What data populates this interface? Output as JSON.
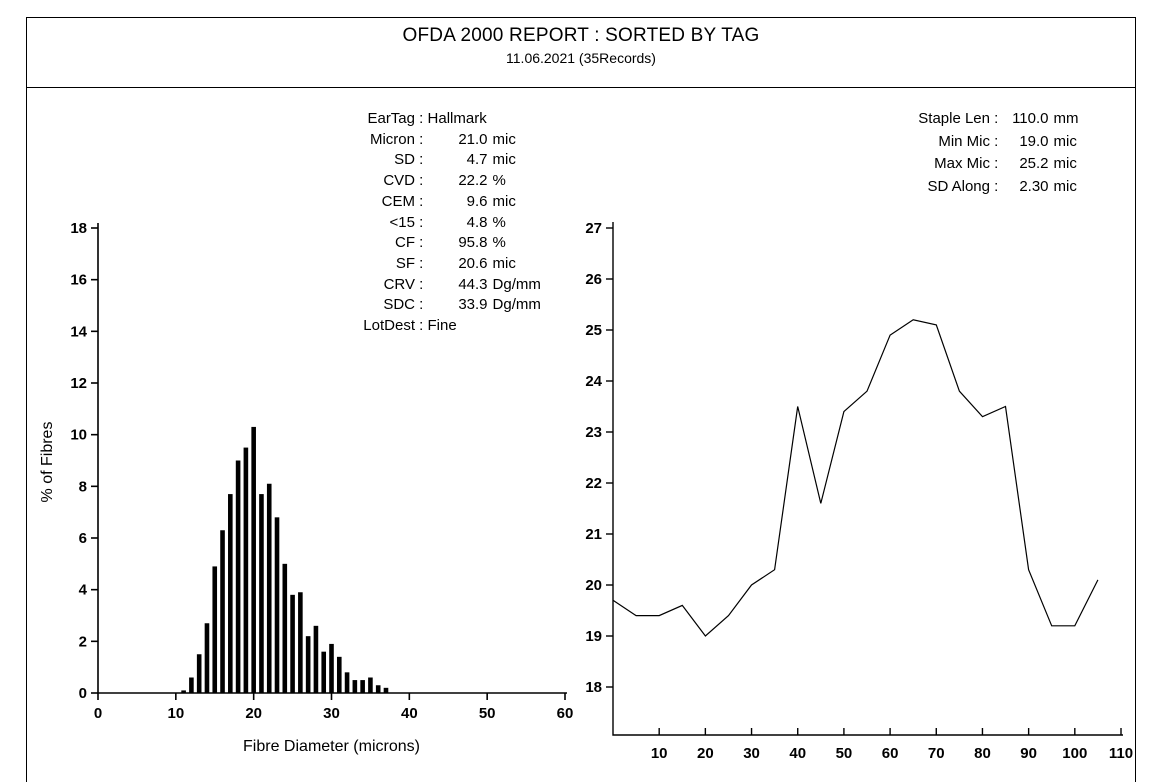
{
  "report": {
    "title": "OFDA 2000 REPORT : SORTED BY TAG",
    "subtitle": "11.06.2021 (35Records)"
  },
  "colors": {
    "ink": "#000000",
    "background": "#ffffff"
  },
  "sample_stats": [
    {
      "label": "EarTag",
      "value": "Hallmark",
      "unit": ""
    },
    {
      "label": "Micron",
      "value": "21.0",
      "unit": "mic"
    },
    {
      "label": "SD",
      "value": "4.7",
      "unit": "mic"
    },
    {
      "label": "CVD",
      "value": "22.2",
      "unit": "%"
    },
    {
      "label": "CEM",
      "value": "9.6",
      "unit": "mic"
    },
    {
      "label": "<15",
      "value": "4.8",
      "unit": "%"
    },
    {
      "label": "CF",
      "value": "95.8",
      "unit": "%"
    },
    {
      "label": "SF",
      "value": "20.6",
      "unit": "mic"
    },
    {
      "label": "CRV",
      "value": "44.3",
      "unit": "Dg/mm"
    },
    {
      "label": "SDC",
      "value": "33.9",
      "unit": "Dg/mm"
    },
    {
      "label": "LotDest",
      "value": "Fine",
      "unit": ""
    }
  ],
  "staple_stats": [
    {
      "label": "Staple Len",
      "value": "110.0",
      "unit": "mm"
    },
    {
      "label": "Min Mic",
      "value": "19.0",
      "unit": "mic"
    },
    {
      "label": "Max Mic",
      "value": "25.2",
      "unit": "mic"
    },
    {
      "label": "SD Along",
      "value": "2.30",
      "unit": "mic"
    }
  ],
  "chart_data": [
    {
      "type": "bar",
      "name": "fibre-diameter-histogram",
      "title": "",
      "xlabel": "Fibre Diameter (microns)",
      "ylabel": "% of Fibres",
      "xlim": [
        0,
        60
      ],
      "ylim": [
        0,
        18
      ],
      "xticks": [
        0,
        10,
        20,
        30,
        40,
        50,
        60
      ],
      "yticks": [
        0,
        2,
        4,
        6,
        8,
        10,
        12,
        14,
        16,
        18
      ],
      "grid": false,
      "legend": false,
      "categories": [
        11,
        12,
        13,
        14,
        15,
        16,
        17,
        18,
        19,
        20,
        21,
        22,
        23,
        24,
        25,
        26,
        27,
        28,
        29,
        30,
        31,
        32,
        33,
        34,
        35,
        36,
        37
      ],
      "values": [
        0.1,
        0.6,
        1.5,
        2.7,
        4.9,
        6.3,
        7.7,
        9.0,
        9.5,
        10.3,
        7.7,
        8.1,
        6.8,
        5.0,
        3.8,
        3.9,
        2.2,
        2.6,
        1.6,
        1.9,
        1.4,
        0.8,
        0.5,
        0.5,
        0.6,
        0.3,
        0.2
      ]
    },
    {
      "type": "line",
      "name": "micron-along-staple-profile",
      "title": "",
      "xlabel": "",
      "ylabel": "",
      "xlim": [
        0,
        110
      ],
      "ylim": [
        17.2,
        27
      ],
      "xticks": [
        10,
        20,
        30,
        40,
        50,
        60,
        70,
        80,
        90,
        100,
        110
      ],
      "yticks": [
        18,
        19,
        20,
        21,
        22,
        23,
        24,
        25,
        26,
        27
      ],
      "grid": false,
      "legend": false,
      "x_interval_mm": 5,
      "x": [
        0,
        5,
        10,
        15,
        20,
        25,
        30,
        35,
        40,
        45,
        50,
        55,
        60,
        65,
        70,
        75,
        80,
        85,
        90,
        95,
        100,
        105
      ],
      "values": [
        19.7,
        19.4,
        19.4,
        19.6,
        19.0,
        19.4,
        20.0,
        20.3,
        23.5,
        21.6,
        23.4,
        23.8,
        24.9,
        25.2,
        25.1,
        23.8,
        23.3,
        23.5,
        20.3,
        19.2,
        19.2,
        20.1
      ]
    }
  ]
}
